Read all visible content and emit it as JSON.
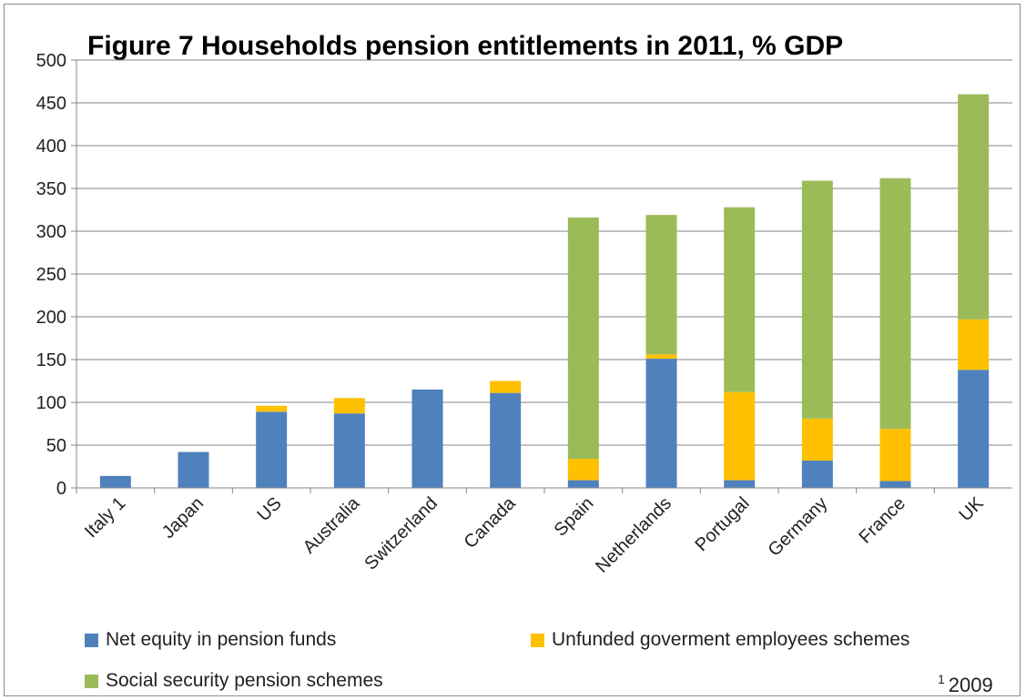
{
  "chart_data": {
    "type": "bar",
    "stacked": true,
    "title": "Figure 7 Households pension entitlements in 2011, % GDP",
    "xlabel": "",
    "ylabel": "",
    "ylim": [
      0,
      500
    ],
    "yticks": [
      0,
      50,
      100,
      150,
      200,
      250,
      300,
      350,
      400,
      450,
      500
    ],
    "grid": true,
    "legend_position": "bottom",
    "categories": [
      "Italy 1",
      "Japan",
      "US",
      "Australia",
      "Switzerland",
      "Canada",
      "Spain",
      "Netherlands",
      "Portugal",
      "Germany",
      "France",
      "UK"
    ],
    "series": [
      {
        "name": "Net equity in pension funds",
        "color": "#4f81bd",
        "values": [
          14,
          42,
          89,
          87,
          115,
          111,
          9,
          151,
          9,
          32,
          8,
          138
        ]
      },
      {
        "name": "Unfunded goverment employees schemes",
        "color": "#ffc000",
        "values": [
          0,
          0,
          7,
          18,
          0,
          14,
          25,
          5,
          103,
          49,
          61,
          59
        ]
      },
      {
        "name": "Social security pension schemes",
        "color": "#9bbb59",
        "values": [
          0,
          0,
          0,
          0,
          0,
          0,
          282,
          163,
          216,
          278,
          293,
          263
        ]
      }
    ],
    "footnote_mark": "1",
    "footnote_text": "2009"
  }
}
